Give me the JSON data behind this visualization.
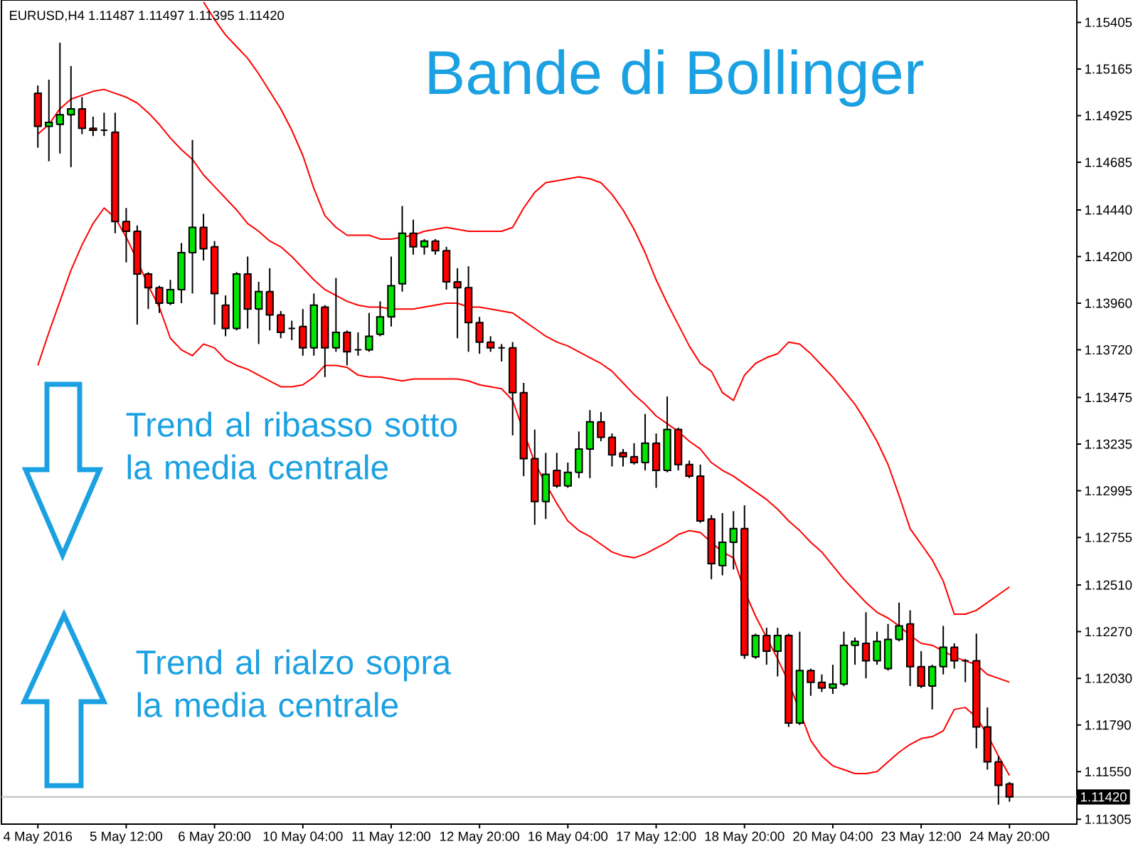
{
  "chart_data": {
    "type": "candlestick",
    "title": "Bande di Bollinger",
    "subtitle": "EURUSD,H4 1.11487 1.11497 1.11395 1.11420",
    "categories": [
      "4 May 2016",
      null,
      null,
      null,
      null,
      null,
      null,
      null,
      "5 May 12:00",
      null,
      null,
      null,
      null,
      null,
      null,
      null,
      "6 May 20:00",
      null,
      null,
      null,
      null,
      null,
      null,
      null,
      "10 May 04:00",
      null,
      null,
      null,
      null,
      null,
      null,
      null,
      "11 May 12:00",
      null,
      null,
      null,
      null,
      null,
      null,
      null,
      "12 May 20:00",
      null,
      null,
      null,
      null,
      null,
      null,
      null,
      "16 May 04:00",
      null,
      null,
      null,
      null,
      null,
      null,
      null,
      "17 May 12:00",
      null,
      null,
      null,
      null,
      null,
      null,
      null,
      "18 May 20:00",
      null,
      null,
      null,
      null,
      null,
      null,
      null,
      "20 May 04:00",
      null,
      null,
      null,
      null,
      null,
      null,
      null,
      "23 May 12:00",
      null,
      null,
      null,
      null,
      null,
      null,
      null,
      "24 May 20:00"
    ],
    "ohlc": [
      [
        1.1504,
        1.1508,
        1.1476,
        1.1487
      ],
      [
        1.1487,
        1.1511,
        1.1469,
        1.1489
      ],
      [
        1.1488,
        1.153,
        1.1473,
        1.1493
      ],
      [
        1.1493,
        1.1518,
        1.1466,
        1.1496
      ],
      [
        1.1496,
        1.1502,
        1.1483,
        1.1486
      ],
      [
        1.1486,
        1.1492,
        1.1482,
        1.1485
      ],
      [
        1.1485,
        1.1494,
        1.1482,
        1.1485
      ],
      [
        1.1484,
        1.1494,
        1.1432,
        1.1438
      ],
      [
        1.1438,
        1.1445,
        1.1417,
        1.1433
      ],
      [
        1.1433,
        1.1436,
        1.1385,
        1.1411
      ],
      [
        1.1411,
        1.1412,
        1.1393,
        1.1404
      ],
      [
        1.1404,
        1.1405,
        1.1391,
        1.1396
      ],
      [
        1.1396,
        1.1408,
        1.1395,
        1.1403
      ],
      [
        1.1403,
        1.1427,
        1.1396,
        1.1422
      ],
      [
        1.1422,
        1.148,
        1.1401,
        1.1435
      ],
      [
        1.1435,
        1.1442,
        1.1418,
        1.1424
      ],
      [
        1.1425,
        1.1428,
        1.1385,
        1.1401
      ],
      [
        1.1395,
        1.14,
        1.1379,
        1.1383
      ],
      [
        1.1383,
        1.1412,
        1.1382,
        1.1411
      ],
      [
        1.1411,
        1.142,
        1.1383,
        1.1393
      ],
      [
        1.1393,
        1.1407,
        1.1375,
        1.1402
      ],
      [
        1.1402,
        1.1414,
        1.1382,
        1.139
      ],
      [
        1.139,
        1.1392,
        1.1378,
        1.1381
      ],
      [
        1.1383,
        1.1387,
        1.1377,
        1.1383
      ],
      [
        1.1384,
        1.1393,
        1.1369,
        1.1373
      ],
      [
        1.1373,
        1.1401,
        1.1369,
        1.1395
      ],
      [
        1.1394,
        1.1395,
        1.1358,
        1.1373
      ],
      [
        1.1373,
        1.1409,
        1.1371,
        1.1381
      ],
      [
        1.1381,
        1.1382,
        1.1364,
        1.1371
      ],
      [
        1.1372,
        1.1381,
        1.1369,
        1.1372
      ],
      [
        1.1372,
        1.1391,
        1.1371,
        1.1379
      ],
      [
        1.138,
        1.1397,
        1.1379,
        1.1389
      ],
      [
        1.1389,
        1.142,
        1.1384,
        1.1405
      ],
      [
        1.1406,
        1.1446,
        1.1402,
        1.1432
      ],
      [
        1.1432,
        1.1439,
        1.1421,
        1.1425
      ],
      [
        1.1425,
        1.1429,
        1.1421,
        1.1428
      ],
      [
        1.1428,
        1.1429,
        1.1421,
        1.1423
      ],
      [
        1.1423,
        1.1425,
        1.1403,
        1.1407
      ],
      [
        1.1407,
        1.1414,
        1.1378,
        1.1404
      ],
      [
        1.1404,
        1.1415,
        1.1371,
        1.1386
      ],
      [
        1.1386,
        1.1389,
        1.137,
        1.1376
      ],
      [
        1.1376,
        1.1379,
        1.1371,
        1.1373
      ],
      [
        1.1373,
        1.1375,
        1.1366,
        1.1373
      ],
      [
        1.1373,
        1.1376,
        1.1328,
        1.135
      ],
      [
        1.135,
        1.1355,
        1.1307,
        1.1316
      ],
      [
        1.1316,
        1.1331,
        1.1282,
        1.1294
      ],
      [
        1.1294,
        1.1319,
        1.1285,
        1.1308
      ],
      [
        1.131,
        1.1319,
        1.1301,
        1.1302
      ],
      [
        1.1302,
        1.1314,
        1.1301,
        1.1309
      ],
      [
        1.1309,
        1.133,
        1.1306,
        1.1321
      ],
      [
        1.1321,
        1.1341,
        1.1306,
        1.1335
      ],
      [
        1.1335,
        1.134,
        1.1325,
        1.1327
      ],
      [
        1.1327,
        1.1329,
        1.1312,
        1.1318
      ],
      [
        1.1319,
        1.1321,
        1.1312,
        1.1317
      ],
      [
        1.1317,
        1.1324,
        1.1313,
        1.1314
      ],
      [
        1.1314,
        1.1339,
        1.131,
        1.1324
      ],
      [
        1.1324,
        1.1329,
        1.1301,
        1.131
      ],
      [
        1.131,
        1.1348,
        1.1309,
        1.1331
      ],
      [
        1.1331,
        1.1332,
        1.131,
        1.1313
      ],
      [
        1.1313,
        1.1315,
        1.1306,
        1.1307
      ],
      [
        1.1307,
        1.1313,
        1.1283,
        1.1284
      ],
      [
        1.1285,
        1.1287,
        1.1254,
        1.1262
      ],
      [
        1.1261,
        1.1288,
        1.1256,
        1.1273
      ],
      [
        1.1273,
        1.1289,
        1.1259,
        1.128
      ],
      [
        1.128,
        1.1292,
        1.1213,
        1.1215
      ],
      [
        1.1214,
        1.1226,
        1.1213,
        1.1225
      ],
      [
        1.1225,
        1.1229,
        1.121,
        1.1217
      ],
      [
        1.1217,
        1.1229,
        1.1204,
        1.1225
      ],
      [
        1.1225,
        1.1226,
        1.1178,
        1.118
      ],
      [
        1.118,
        1.1227,
        1.1179,
        1.1207
      ],
      [
        1.1207,
        1.1208,
        1.1194,
        1.1201
      ],
      [
        1.1201,
        1.1205,
        1.1196,
        1.1198
      ],
      [
        1.1198,
        1.121,
        1.1195,
        1.12
      ],
      [
        1.12,
        1.1227,
        1.1199,
        1.122
      ],
      [
        1.122,
        1.1224,
        1.121,
        1.1222
      ],
      [
        1.1221,
        1.1237,
        1.1203,
        1.1212
      ],
      [
        1.1212,
        1.1227,
        1.121,
        1.1222
      ],
      [
        1.1208,
        1.1231,
        1.1207,
        1.1223
      ],
      [
        1.1223,
        1.1242,
        1.1222,
        1.123
      ],
      [
        1.1231,
        1.1238,
        1.1199,
        1.1209
      ],
      [
        1.1209,
        1.1217,
        1.1198,
        1.1199
      ],
      [
        1.1199,
        1.121,
        1.1187,
        1.1209
      ],
      [
        1.1209,
        1.123,
        1.1205,
        1.1219
      ],
      [
        1.1219,
        1.1221,
        1.1208,
        1.1212
      ],
      [
        1.1212,
        1.1213,
        1.1201,
        1.1212
      ],
      [
        1.1212,
        1.1226,
        1.1167,
        1.1178
      ],
      [
        1.1178,
        1.1188,
        1.1156,
        1.116
      ],
      [
        1.116,
        1.1163,
        1.1138,
        1.1148
      ],
      [
        1.11487,
        1.11497,
        1.11395,
        1.1142
      ]
    ],
    "colors": [
      "#ff0000",
      "#00e600",
      "#00e600",
      "#00e600",
      "#ff0000",
      "#ff0000",
      "#000000",
      "#ff0000",
      "#ff0000",
      "#ff0000",
      "#ff0000",
      "#ff0000",
      "#00e600",
      "#00e600",
      "#00e600",
      "#ff0000",
      "#ff0000",
      "#ff0000",
      "#00e600",
      "#ff0000",
      "#00e600",
      "#ff0000",
      "#ff0000",
      "#000000",
      "#ff0000",
      "#00e600",
      "#ff0000",
      "#00e600",
      "#ff0000",
      "#000000",
      "#00e600",
      "#00e600",
      "#00e600",
      "#00e600",
      "#ff0000",
      "#00e600",
      "#ff0000",
      "#ff0000",
      "#ff0000",
      "#ff0000",
      "#ff0000",
      "#ff0000",
      "#000000",
      "#ff0000",
      "#ff0000",
      "#ff0000",
      "#00e600",
      "#ff0000",
      "#00e600",
      "#00e600",
      "#00e600",
      "#ff0000",
      "#ff0000",
      "#ff0000",
      "#ff0000",
      "#00e600",
      "#ff0000",
      "#00e600",
      "#ff0000",
      "#ff0000",
      "#ff0000",
      "#ff0000",
      "#00e600",
      "#00e600",
      "#ff0000",
      "#00e600",
      "#ff0000",
      "#00e600",
      "#ff0000",
      "#00e600",
      "#ff0000",
      "#ff0000",
      "#00e600",
      "#00e600",
      "#00e600",
      "#ff0000",
      "#00e600",
      "#00e600",
      "#00e600",
      "#ff0000",
      "#ff0000",
      "#00e600",
      "#00e600",
      "#ff0000",
      "#000000",
      "#ff0000",
      "#ff0000",
      "#ff0000",
      "#ff0000"
    ],
    "series": [
      {
        "type": "line",
        "color": "#ff0000",
        "values": [
          null,
          null,
          null,
          null,
          null,
          null,
          null,
          null,
          null,
          null,
          null,
          null,
          null,
          null,
          null,
          1.1551,
          1.1542,
          1.1534,
          1.1528,
          1.1522,
          1.1514,
          1.1505,
          1.1496,
          1.1485,
          1.1472,
          1.1455,
          1.1441,
          1.1435,
          1.1431,
          1.1431,
          1.1431,
          1.1429,
          1.1429,
          1.143,
          1.1431,
          1.1433,
          1.1434,
          1.1435,
          1.1434,
          1.1433,
          1.1433,
          1.1433,
          1.1433,
          1.1435,
          1.1445,
          1.1453,
          1.1458,
          1.1459,
          1.146,
          1.1461,
          1.146,
          1.1458,
          1.1452,
          1.1444,
          1.1434,
          1.1422,
          1.1408,
          1.1396,
          1.1385,
          1.1374,
          1.1365,
          1.1361,
          1.135,
          1.1346,
          1.1359,
          1.1365,
          1.1368,
          1.137,
          1.1376,
          1.1375,
          1.137,
          1.1364,
          1.1358,
          1.1351,
          1.1344,
          1.1335,
          1.1325,
          1.1313,
          1.1297,
          1.128,
          1.1272,
          1.1264,
          1.1253,
          1.1236,
          1.1236,
          1.1238,
          1.1242,
          1.1246,
          1.125
        ]
      },
      {
        "type": "line",
        "color": "#ff0000",
        "values": [
          1.1483,
          1.1488,
          1.1496,
          1.1501,
          1.1503,
          1.1505,
          1.1506,
          1.1504,
          1.1502,
          1.1499,
          1.1494,
          1.1488,
          1.1481,
          1.1475,
          1.147,
          1.1462,
          1.1456,
          1.145,
          1.1444,
          1.1437,
          1.1433,
          1.1428,
          1.1425,
          1.142,
          1.1414,
          1.1408,
          1.1403,
          1.14,
          1.1397,
          1.1395,
          1.1394,
          1.1394,
          1.1393,
          1.1393,
          1.1393,
          1.1394,
          1.1395,
          1.1396,
          1.1396,
          1.1394,
          1.1394,
          1.1393,
          1.1392,
          1.1391,
          1.1387,
          1.1383,
          1.1379,
          1.1376,
          1.1374,
          1.1371,
          1.1368,
          1.1365,
          1.1361,
          1.1355,
          1.1349,
          1.1344,
          1.1338,
          1.1334,
          1.133,
          1.1325,
          1.1321,
          1.1314,
          1.131,
          1.1307,
          1.1303,
          1.1299,
          1.1295,
          1.129,
          1.1284,
          1.1279,
          1.1273,
          1.1268,
          1.1261,
          1.1254,
          1.1248,
          1.1242,
          1.1237,
          1.1234,
          1.123,
          1.1225,
          1.1221,
          1.122,
          1.1217,
          1.1214,
          1.1212,
          1.121,
          1.1205,
          1.1203,
          1.1201
        ]
      },
      {
        "type": "line",
        "color": "#ff0000",
        "values": [
          1.1364,
          1.1381,
          1.1397,
          1.1413,
          1.1426,
          1.1437,
          1.1445,
          1.144,
          1.143,
          1.1418,
          1.1405,
          1.1394,
          1.1378,
          1.1372,
          1.1369,
          1.1375,
          1.1373,
          1.1367,
          1.1364,
          1.1362,
          1.1359,
          1.1356,
          1.1353,
          1.1353,
          1.1354,
          1.1358,
          1.1364,
          1.1364,
          1.1363,
          1.1359,
          1.1358,
          1.1358,
          1.1357,
          1.1356,
          1.1357,
          1.1357,
          1.1357,
          1.1357,
          1.1357,
          1.1356,
          1.1354,
          1.1353,
          1.1352,
          1.1346,
          1.133,
          1.1314,
          1.1303,
          1.1293,
          1.1284,
          1.1279,
          1.1276,
          1.1272,
          1.1268,
          1.1266,
          1.1265,
          1.1267,
          1.127,
          1.1273,
          1.1277,
          1.1279,
          1.1278,
          1.1273,
          1.1268,
          1.1265,
          1.1248,
          1.1235,
          1.1224,
          1.1213,
          1.1201,
          null,
          1.1171,
          1.1163,
          1.1158,
          1.1156,
          1.1154,
          1.1154,
          1.1155,
          1.116,
          1.1165,
          1.1169,
          1.1172,
          1.1173,
          1.1176,
          1.1187,
          1.1188,
          1.1183,
          1.1174,
          1.1163,
          1.1153
        ]
      }
    ],
    "ylim": [
      1.1128,
      1.1552
    ],
    "yticks": [
      1.11305,
      {
        "value": 1.1155,
        "label": "1.11550"
      },
      {
        "value": 1.1179,
        "label": "1.11790"
      },
      {
        "value": 1.1203,
        "label": "1.12030"
      },
      {
        "value": 1.1227,
        "label": "1.12270"
      },
      {
        "value": 1.1251,
        "label": "1.12510"
      },
      1.12755,
      1.12995,
      1.13235,
      1.13475,
      {
        "value": 1.1372,
        "label": "1.13720"
      },
      {
        "value": 1.1396,
        "label": "1.13960"
      },
      {
        "value": 1.142,
        "label": "1.14200"
      },
      {
        "value": 1.1444,
        "label": "1.14440"
      },
      1.14685,
      1.14925,
      1.15165,
      1.15405
    ],
    "ref_lines": [
      {
        "axis": "y",
        "value": 1.1142,
        "label": "1.11420",
        "color": "#c0c0c0"
      }
    ],
    "annotations": [
      "Trend al ribasso sotto la media centrale",
      "Trend al rialzo sopra la media centrale"
    ]
  }
}
